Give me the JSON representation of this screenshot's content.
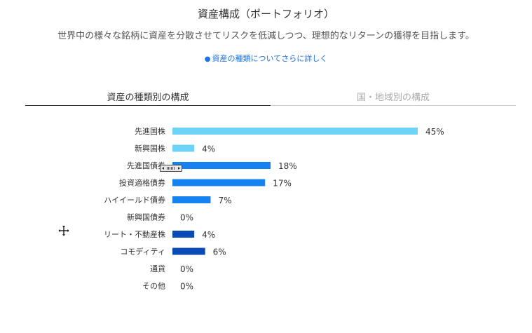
{
  "header": {
    "title": "資産構成（ポートフォリオ）",
    "subtitle": "世界中の様々な銘柄に資産を分散させてリスクを低減しつつ、理想的なリターンの獲得を目指します。",
    "link_bullet": "●",
    "link_text": "資産の種類についてさらに詳しく",
    "link_color": "#1a73e8"
  },
  "tabs": [
    {
      "label": "資産の種類別の構成",
      "active": true
    },
    {
      "label": "国・地域別の構成",
      "active": false
    }
  ],
  "colors": {
    "light_blue": "#6dd3f7",
    "blue": "#1482f0",
    "dark_blue": "#0b4bb5",
    "text": "#333333"
  },
  "icons": {
    "cursor": "move-cursor-icon",
    "handle": "horizontal-scroll-handle-icon"
  },
  "chart_data": {
    "type": "bar",
    "orientation": "horizontal",
    "categories": [
      "先進国株",
      "新興国株",
      "先進国債券",
      "投資適格債券",
      "ハイイールド債券",
      "新興国債券",
      "リート・不動産株",
      "コモディティ",
      "通貨",
      "その他"
    ],
    "values": [
      45,
      4,
      18,
      17,
      7,
      0,
      4,
      6,
      0,
      0
    ],
    "value_labels": [
      "45%",
      "4%",
      "18%",
      "17%",
      "7%",
      "0%",
      "4%",
      "6%",
      "0%",
      "0%"
    ],
    "bar_colors": [
      "#6dd3f7",
      "#6dd3f7",
      "#1482f0",
      "#1482f0",
      "#1482f0",
      "#1482f0",
      "#0b4bb5",
      "#0b4bb5",
      "#0b4bb5",
      "#0b4bb5"
    ],
    "xlim": [
      0,
      45
    ],
    "grid": false,
    "legend": "none"
  }
}
